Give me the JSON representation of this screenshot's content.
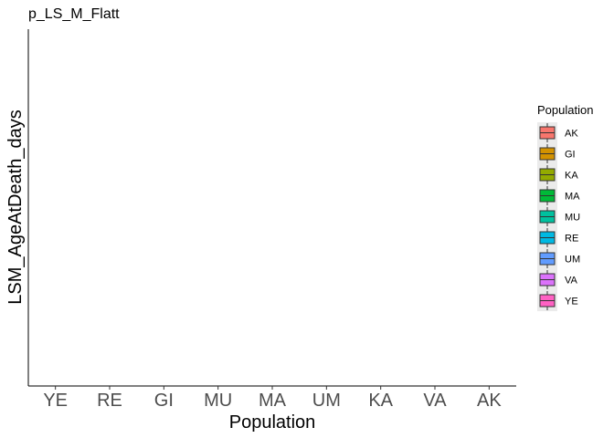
{
  "chart_data": {
    "type": "box",
    "title": "p_LS_M_Flatt",
    "xlabel": "Population",
    "ylabel": "LSM_AgeAtDeath_days",
    "categories": [
      "YE",
      "RE",
      "GI",
      "MU",
      "MA",
      "UM",
      "KA",
      "VA",
      "AK"
    ],
    "series": [],
    "grid": false,
    "legend": {
      "title": "Population",
      "placement": "right",
      "entries": [
        {
          "label": "AK",
          "color": "#F8766D"
        },
        {
          "label": "GI",
          "color": "#D39200"
        },
        {
          "label": "KA",
          "color": "#93AA00"
        },
        {
          "label": "MA",
          "color": "#00BA38"
        },
        {
          "label": "MU",
          "color": "#00C19F"
        },
        {
          "label": "RE",
          "color": "#00B9E3"
        },
        {
          "label": "UM",
          "color": "#619CFF"
        },
        {
          "label": "VA",
          "color": "#DB72FB"
        },
        {
          "label": "YE",
          "color": "#FF61C3"
        }
      ]
    }
  }
}
